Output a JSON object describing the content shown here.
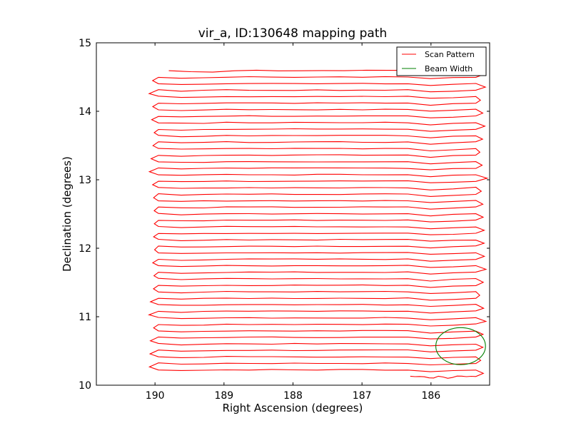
{
  "chart_data": {
    "type": "line",
    "title": "vir_a, ID:130648 mapping path",
    "xlabel": "Right Ascension (degrees)",
    "ylabel": "Declination (degrees)",
    "xlim": [
      190.85,
      185.15
    ],
    "ylim": [
      10,
      15
    ],
    "x_inverted": true,
    "xticks": [
      190,
      189,
      188,
      187,
      186
    ],
    "yticks": [
      10,
      11,
      12,
      13,
      14,
      15
    ],
    "grid": false,
    "legend_position": "top-right",
    "series": [
      {
        "name": "Scan Pattern",
        "color": "#ff0000",
        "style": "raster",
        "dec_start": 10.13,
        "dec_end": 14.64,
        "dec_step": 0.095,
        "ra_east": 189.95,
        "ra_west": 185.35,
        "scan_start_ra": 186.3,
        "scan_end_ra": 189.8
      },
      {
        "name": "Beam Width",
        "color": "#007f00",
        "style": "circle",
        "center_ra": 185.57,
        "center_dec": 10.57,
        "radius_deg": 0.36
      }
    ]
  }
}
